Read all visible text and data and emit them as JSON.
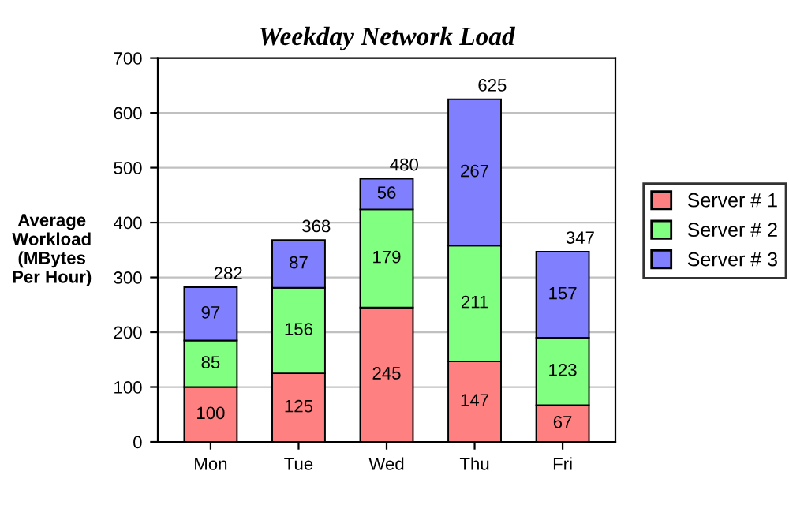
{
  "chart_data": {
    "type": "bar",
    "title": "Weekday Network Load",
    "ylabel": "Average\nWorkload\n(MBytes\nPer Hour)",
    "categories": [
      "Mon",
      "Tue",
      "Wed",
      "Thu",
      "Fri"
    ],
    "series": [
      {
        "name": "Server # 1",
        "color": "#ff8080",
        "values": [
          100,
          125,
          245,
          147,
          67
        ]
      },
      {
        "name": "Server # 2",
        "color": "#80ff80",
        "values": [
          85,
          156,
          179,
          211,
          123
        ]
      },
      {
        "name": "Server # 3",
        "color": "#8080ff",
        "values": [
          97,
          87,
          56,
          267,
          157
        ]
      }
    ],
    "stacked": true,
    "data_labels": true,
    "totals": [
      "282",
      "368",
      "480",
      "625",
      "347"
    ],
    "ylim": [
      0,
      700
    ],
    "yticks": [
      0,
      100,
      200,
      300,
      400,
      500,
      600,
      700
    ],
    "grid": "y",
    "legend": "right"
  }
}
